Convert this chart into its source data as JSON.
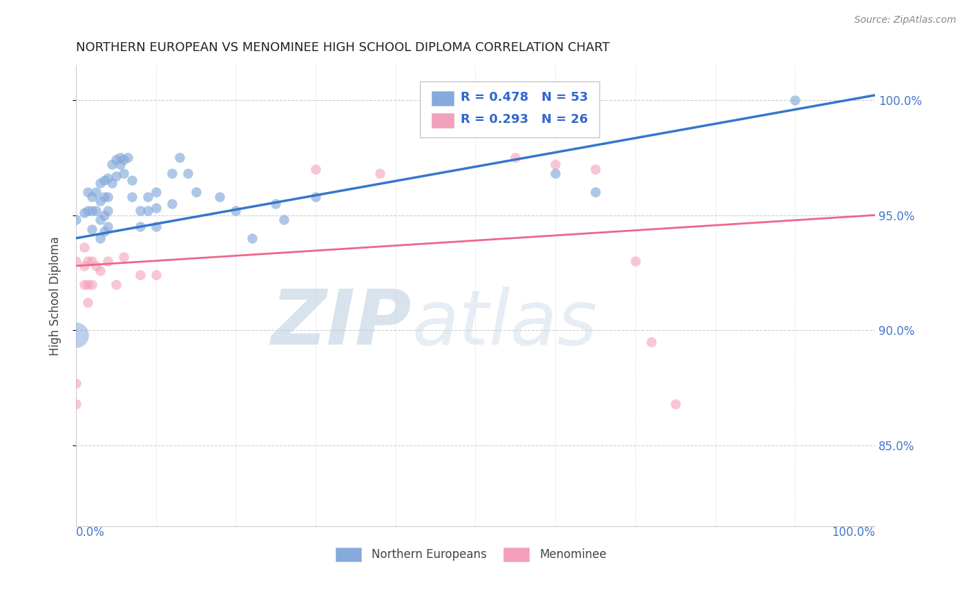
{
  "title": "NORTHERN EUROPEAN VS MENOMINEE HIGH SCHOOL DIPLOMA CORRELATION CHART",
  "source": "Source: ZipAtlas.com",
  "ylabel": "High School Diploma",
  "ytick_labels": [
    "100.0%",
    "95.0%",
    "90.0%",
    "85.0%"
  ],
  "ytick_values": [
    1.0,
    0.95,
    0.9,
    0.85
  ],
  "xlim": [
    0.0,
    1.0
  ],
  "ylim": [
    0.815,
    1.015
  ],
  "legend_r_blue": "R = 0.478",
  "legend_n_blue": "N = 53",
  "legend_r_pink": "R = 0.293",
  "legend_n_pink": "N = 26",
  "blue_color": "#85AADB",
  "pink_color": "#F4A0BB",
  "blue_line_color": "#3377CC",
  "pink_line_color": "#EE6688",
  "watermark_zip": "ZIP",
  "watermark_atlas": "atlas",
  "blue_line_intercept": 0.94,
  "blue_line_slope": 0.062,
  "pink_line_intercept": 0.928,
  "pink_line_slope": 0.022,
  "blue_points": [
    [
      0.0,
      0.948
    ],
    [
      0.01,
      0.951
    ],
    [
      0.015,
      0.96
    ],
    [
      0.015,
      0.952
    ],
    [
      0.02,
      0.958
    ],
    [
      0.02,
      0.952
    ],
    [
      0.02,
      0.944
    ],
    [
      0.025,
      0.96
    ],
    [
      0.025,
      0.952
    ],
    [
      0.03,
      0.964
    ],
    [
      0.03,
      0.956
    ],
    [
      0.03,
      0.948
    ],
    [
      0.03,
      0.94
    ],
    [
      0.035,
      0.965
    ],
    [
      0.035,
      0.958
    ],
    [
      0.035,
      0.95
    ],
    [
      0.035,
      0.943
    ],
    [
      0.04,
      0.966
    ],
    [
      0.04,
      0.958
    ],
    [
      0.04,
      0.952
    ],
    [
      0.04,
      0.945
    ],
    [
      0.045,
      0.972
    ],
    [
      0.045,
      0.964
    ],
    [
      0.05,
      0.974
    ],
    [
      0.05,
      0.967
    ],
    [
      0.055,
      0.975
    ],
    [
      0.055,
      0.972
    ],
    [
      0.06,
      0.974
    ],
    [
      0.06,
      0.968
    ],
    [
      0.065,
      0.975
    ],
    [
      0.07,
      0.965
    ],
    [
      0.07,
      0.958
    ],
    [
      0.08,
      0.952
    ],
    [
      0.08,
      0.945
    ],
    [
      0.09,
      0.958
    ],
    [
      0.09,
      0.952
    ],
    [
      0.1,
      0.96
    ],
    [
      0.1,
      0.953
    ],
    [
      0.1,
      0.945
    ],
    [
      0.12,
      0.968
    ],
    [
      0.12,
      0.955
    ],
    [
      0.13,
      0.975
    ],
    [
      0.14,
      0.968
    ],
    [
      0.15,
      0.96
    ],
    [
      0.18,
      0.958
    ],
    [
      0.2,
      0.952
    ],
    [
      0.22,
      0.94
    ],
    [
      0.25,
      0.955
    ],
    [
      0.26,
      0.948
    ],
    [
      0.3,
      0.958
    ],
    [
      0.6,
      0.968
    ],
    [
      0.65,
      0.96
    ],
    [
      0.9,
      1.0
    ]
  ],
  "big_blue_point": [
    0.0,
    0.898
  ],
  "big_blue_size": 700,
  "pink_points": [
    [
      0.0,
      0.93
    ],
    [
      0.0,
      0.877
    ],
    [
      0.0,
      0.868
    ],
    [
      0.01,
      0.936
    ],
    [
      0.01,
      0.928
    ],
    [
      0.01,
      0.92
    ],
    [
      0.015,
      0.93
    ],
    [
      0.015,
      0.92
    ],
    [
      0.015,
      0.912
    ],
    [
      0.02,
      0.93
    ],
    [
      0.02,
      0.92
    ],
    [
      0.025,
      0.928
    ],
    [
      0.03,
      0.926
    ],
    [
      0.04,
      0.93
    ],
    [
      0.05,
      0.92
    ],
    [
      0.06,
      0.932
    ],
    [
      0.08,
      0.924
    ],
    [
      0.1,
      0.924
    ],
    [
      0.3,
      0.97
    ],
    [
      0.38,
      0.968
    ],
    [
      0.55,
      0.975
    ],
    [
      0.6,
      0.972
    ],
    [
      0.65,
      0.97
    ],
    [
      0.7,
      0.93
    ],
    [
      0.72,
      0.895
    ],
    [
      0.75,
      0.868
    ]
  ]
}
